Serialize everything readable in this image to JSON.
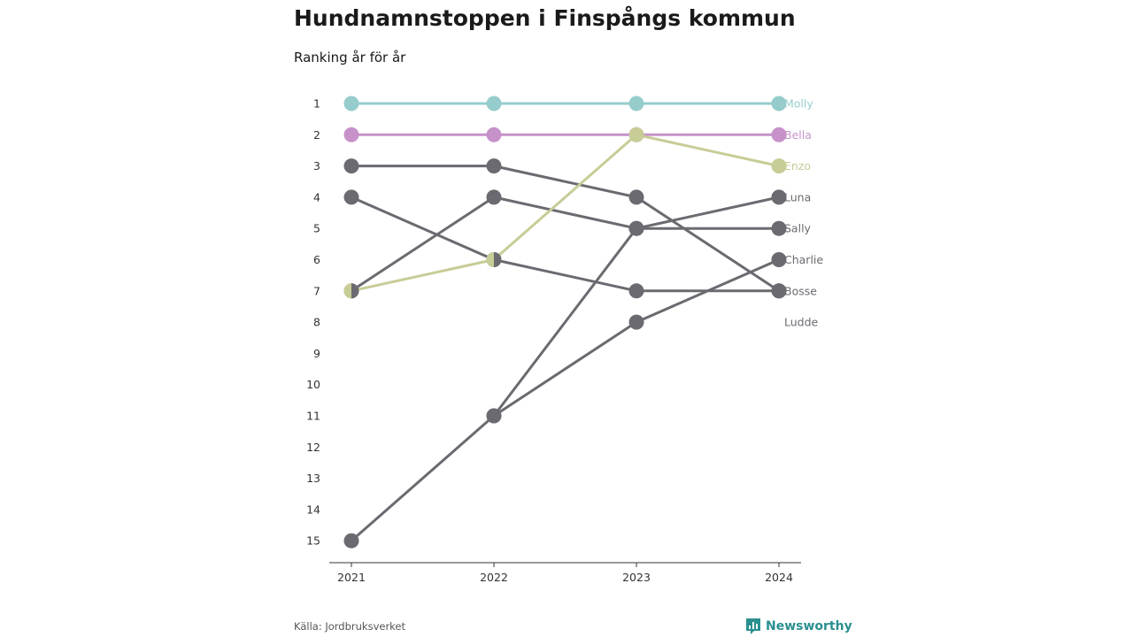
{
  "title": "Hundnamnstoppen i Finspångs kommun",
  "subtitle": "Ranking år för år",
  "source": "Källa: Jordbruksverket",
  "brand": {
    "name": "Newsworthy",
    "icon": "bar-chart-logo-icon",
    "color": "#2a8f8f"
  },
  "colors": {
    "Molly": "#96cccc",
    "Bella": "#c792c9",
    "Enzo": "#c8cc96",
    "default": "#6b6a70",
    "axis": "#333333"
  },
  "chart_data": {
    "type": "line",
    "x": [
      "2021",
      "2022",
      "2023",
      "2024"
    ],
    "ylim": [
      1,
      15
    ],
    "y_ticks": [
      "1",
      "2",
      "3",
      "4",
      "5",
      "6",
      "7",
      "8",
      "9",
      "10",
      "11",
      "12",
      "13",
      "14",
      "15"
    ],
    "y_inverted": true,
    "grid": false,
    "legend": "end-labels",
    "series": [
      {
        "name": "Molly",
        "values": [
          1,
          1,
          1,
          1
        ]
      },
      {
        "name": "Bella",
        "values": [
          2,
          2,
          2,
          2
        ]
      },
      {
        "name": "Enzo",
        "values": [
          7,
          6,
          2,
          3
        ]
      },
      {
        "name": "Luna",
        "values": [
          7,
          4,
          5,
          4
        ]
      },
      {
        "name": "Sally",
        "values": [
          15,
          11,
          5,
          5
        ]
      },
      {
        "name": "Charlie",
        "values": [
          null,
          11,
          8,
          6
        ]
      },
      {
        "name": "Bosse",
        "values": [
          3,
          3,
          4,
          7
        ]
      },
      {
        "name": "Ludde",
        "values": [
          4,
          6,
          7,
          7
        ]
      }
    ],
    "end_labels": [
      {
        "name": "Molly",
        "rank": 1
      },
      {
        "name": "Bella",
        "rank": 2
      },
      {
        "name": "Enzo",
        "rank": 3
      },
      {
        "name": "Luna",
        "rank": 4
      },
      {
        "name": "Sally",
        "rank": 5
      },
      {
        "name": "Charlie",
        "rank": 6
      },
      {
        "name": "Bosse",
        "rank": 7
      },
      {
        "name": "Ludde",
        "rank": 8
      }
    ]
  }
}
